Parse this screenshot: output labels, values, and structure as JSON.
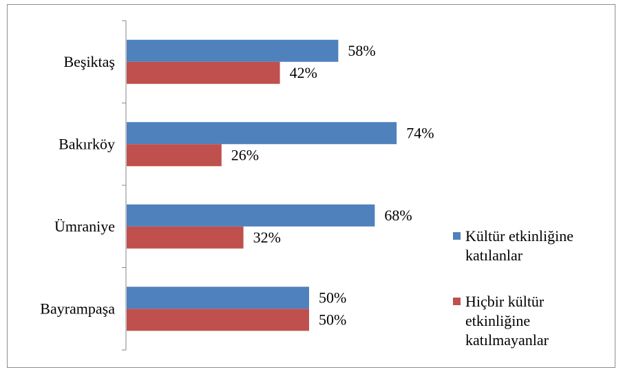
{
  "chart_data": {
    "type": "bar",
    "orientation": "horizontal",
    "categories": [
      "Beşiktaş",
      "Bakırköy",
      "Ümraniye",
      "Bayrampaşa"
    ],
    "series": [
      {
        "name": "Kültür etkinliğine katılanlar",
        "values": [
          58,
          74,
          68,
          50
        ],
        "color": "#4f81bd",
        "labels": [
          "58%",
          "74%",
          "68%",
          "50%"
        ],
        "legend_lines": [
          "Kültür etkinliğine",
          "katılanlar"
        ]
      },
      {
        "name": "Hiçbir kültür etkinliğine katılmayanlar",
        "values": [
          42,
          26,
          32,
          50
        ],
        "color": "#c0504d",
        "labels": [
          "42%",
          "26%",
          "32%",
          "50%"
        ],
        "legend_lines": [
          "Hiçbir kültür",
          "etkinliğine",
          "katılmayanlar"
        ]
      }
    ],
    "value_unit": "%",
    "xlim": [
      0,
      100
    ],
    "grid": false,
    "legend_position": "right"
  }
}
